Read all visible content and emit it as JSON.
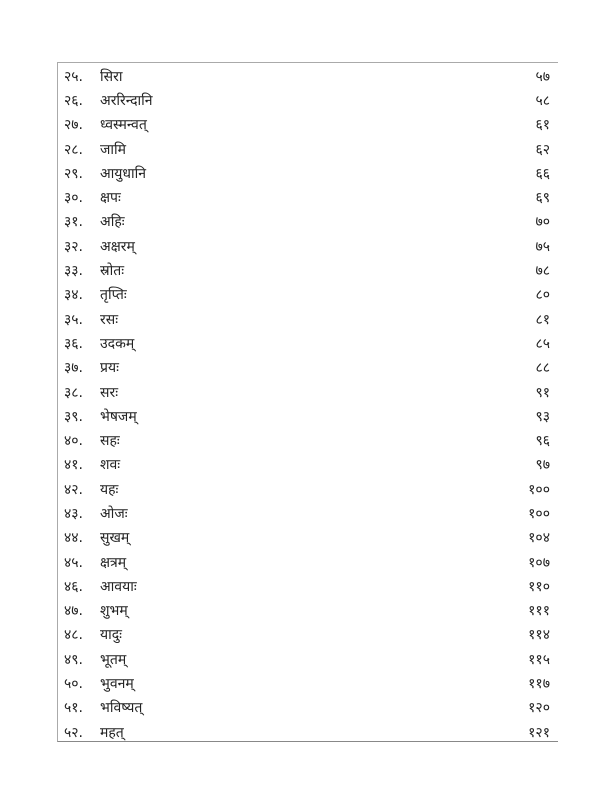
{
  "entries": [
    {
      "num": "२५.",
      "title": "सिरा",
      "page": "५७"
    },
    {
      "num": "२६.",
      "title": "अररिन्दानि",
      "page": "५८"
    },
    {
      "num": "२७.",
      "title": "ध्वस्मन्वत्",
      "page": "६१"
    },
    {
      "num": "२८.",
      "title": "जामि",
      "page": "६२"
    },
    {
      "num": "२९.",
      "title": "आयुधानि",
      "page": "६६"
    },
    {
      "num": "३०.",
      "title": "क्षपः",
      "page": "६९"
    },
    {
      "num": "३१.",
      "title": "अहिः",
      "page": "७०"
    },
    {
      "num": "३२.",
      "title": "अक्षरम्",
      "page": "७५"
    },
    {
      "num": "३३.",
      "title": "स्रोतः",
      "page": "७८"
    },
    {
      "num": "३४.",
      "title": "तृप्तिः",
      "page": "८०"
    },
    {
      "num": "३५.",
      "title": "रसः",
      "page": "८१"
    },
    {
      "num": "३६.",
      "title": "उदकम्",
      "page": "८५"
    },
    {
      "num": "३७.",
      "title": "प्रयः",
      "page": "८८"
    },
    {
      "num": "३८.",
      "title": "सरः",
      "page": "९१"
    },
    {
      "num": "३९.",
      "title": "भेषजम्",
      "page": "९३"
    },
    {
      "num": "४०.",
      "title": "सहः",
      "page": "९६"
    },
    {
      "num": "४१.",
      "title": "शवः",
      "page": "९७"
    },
    {
      "num": "४२.",
      "title": "यहः",
      "page": "१००"
    },
    {
      "num": "४३.",
      "title": "ओजः",
      "page": "१००"
    },
    {
      "num": "४४.",
      "title": "सुखम्",
      "page": "१०४"
    },
    {
      "num": "४५.",
      "title": "क्षत्रम्",
      "page": "१०७"
    },
    {
      "num": "४६.",
      "title": "आवयाः",
      "page": "११०"
    },
    {
      "num": "४७.",
      "title": "शुभम्",
      "page": "१११"
    },
    {
      "num": "४८.",
      "title": "यादुः",
      "page": "११४"
    },
    {
      "num": "४९.",
      "title": "भूतम्",
      "page": "११५"
    },
    {
      "num": "५०.",
      "title": "भुवनम्",
      "page": "११७"
    },
    {
      "num": "५१.",
      "title": "भविष्यत्",
      "page": "१२०"
    },
    {
      "num": "५२.",
      "title": "महत्",
      "page": "१२१"
    }
  ]
}
